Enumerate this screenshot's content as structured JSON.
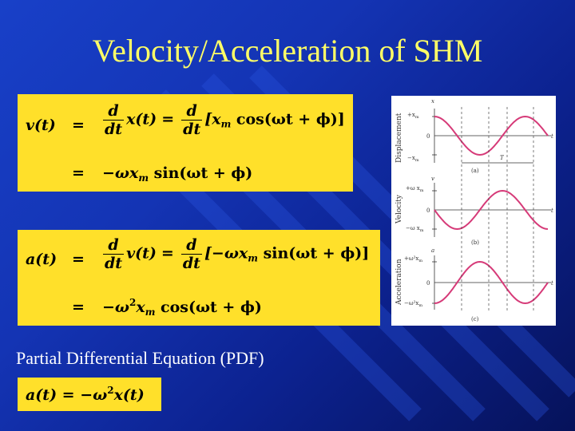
{
  "slide": {
    "title": "Velocity/Acceleration of SHM",
    "pde_label": "Partial Differential Equation (PDF)"
  },
  "velocity_box": {
    "lhs": "v(t)",
    "eq": "=",
    "d": "d",
    "dt": "dt",
    "x_of_t": "x(t)",
    "bracket": "[x",
    "sub_m": "m",
    "cos_term": " cos(ωt + ϕ)]",
    "row2_prefix": "−ωx",
    "row2_suffix": " sin(ωt + ϕ)"
  },
  "acceleration_box": {
    "lhs": "a(t)",
    "eq": "=",
    "d": "d",
    "dt": "dt",
    "v_of_t": "v(t)",
    "bracket": "[−ωx",
    "sub_m": "m",
    "sin_term": " sin(ωt + ϕ)]",
    "row2_prefix": "−ω",
    "sup_2": "2",
    "row2_x": "x",
    "row2_suffix": " cos(ωt + ϕ)"
  },
  "pde_box": {
    "lhs": "a(t) = −ω",
    "sup_2": "2",
    "rhs": "x(t)"
  },
  "graph": {
    "panel_a": {
      "ylabel": "Displacement",
      "axis_var": "x",
      "top_tick": "+x",
      "top_tick_sub": "m",
      "zero_tick": "0",
      "bottom_tick": "−x",
      "bottom_tick_sub": "m",
      "time_var": "t",
      "period_label": "T",
      "caption": "(a)"
    },
    "panel_b": {
      "ylabel": "Velocity",
      "axis_var": "v",
      "top_tick": "+ω x",
      "top_tick_sub": "m",
      "zero_tick": "0",
      "bottom_tick": "−ω x",
      "bottom_tick_sub": "m",
      "time_var": "t",
      "caption": "(b)"
    },
    "panel_c": {
      "ylabel": "Acceleration",
      "axis_var": "a",
      "top_tick": "+ω²x",
      "top_tick_sub": "m",
      "zero_tick": "0",
      "bottom_tick": "−ω²x",
      "bottom_tick_sub": "m",
      "time_var": "t",
      "caption": "(c)"
    },
    "curve_color": "#d63a78"
  },
  "colors": {
    "title": "#ffff66",
    "box": "#ffe02a"
  }
}
